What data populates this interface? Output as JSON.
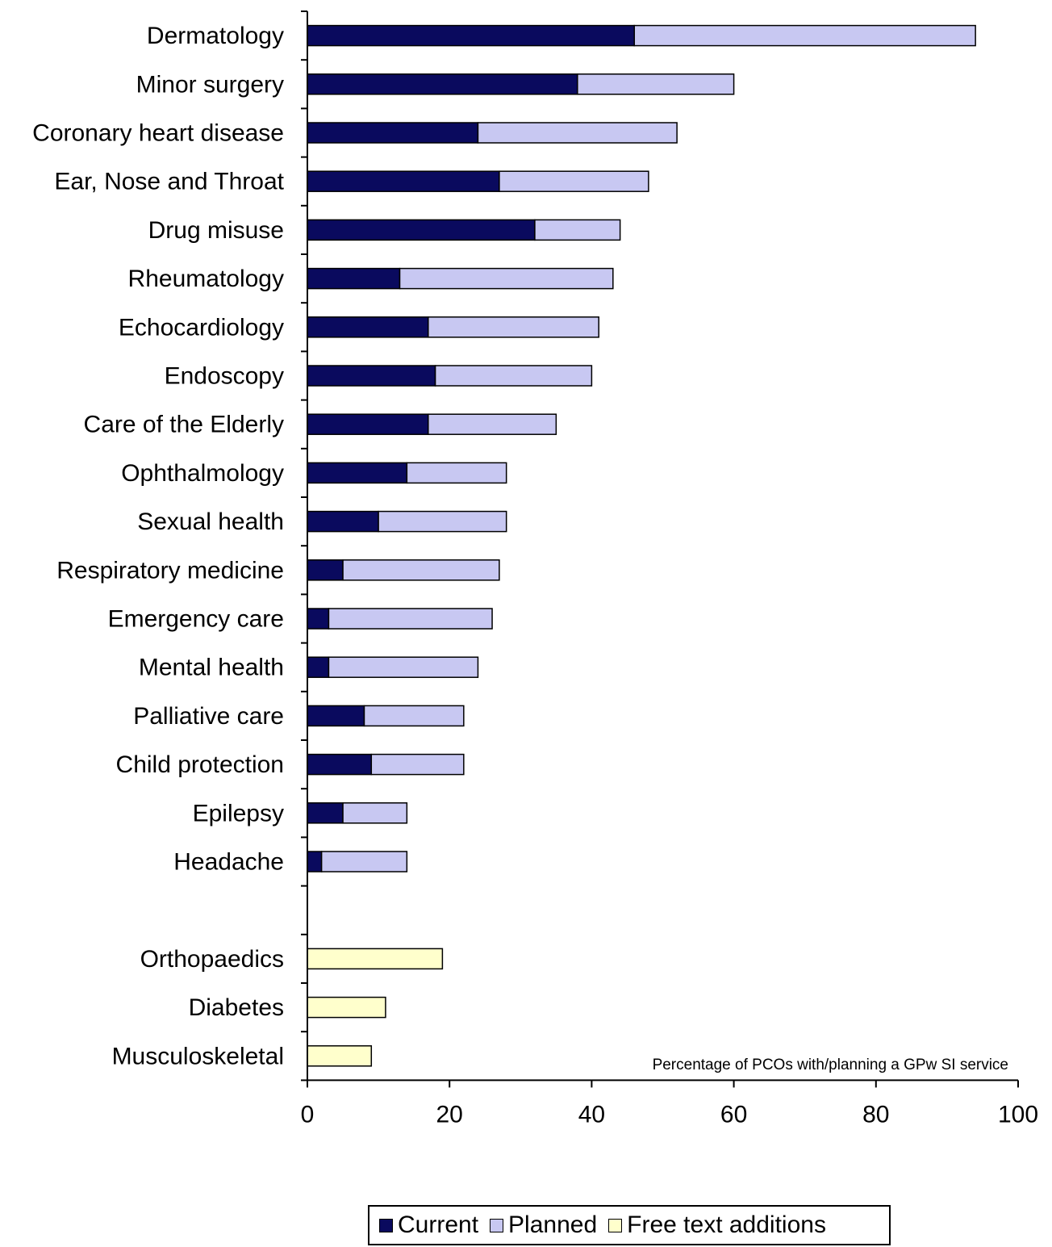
{
  "chart_data": {
    "type": "bar",
    "orientation": "horizontal",
    "stacked": true,
    "categories": [
      "Dermatology",
      "Minor surgery",
      "Coronary heart disease",
      "Ear, Nose and Throat",
      "Drug misuse",
      "Rheumatology",
      "Echocardiology",
      "Endoscopy",
      "Care of the Elderly",
      "Ophthalmology",
      "Sexual health",
      "Respiratory medicine",
      "Emergency care",
      "Mental health",
      "Palliative care",
      "Child protection",
      "Epilepsy",
      "Headache",
      "",
      "Orthopaedics",
      "Diabetes",
      "Musculoskeletal"
    ],
    "series": [
      {
        "name": "Current",
        "color": "#0a0a5e",
        "values": [
          46,
          38,
          24,
          27,
          32,
          13,
          17,
          18,
          17,
          14,
          10,
          5,
          3,
          3,
          8,
          9,
          5,
          2,
          0,
          0,
          0,
          0
        ]
      },
      {
        "name": "Planned",
        "color": "#c8c8f2",
        "values": [
          48,
          22,
          28,
          21,
          12,
          30,
          24,
          22,
          18,
          14,
          18,
          22,
          23,
          21,
          14,
          13,
          9,
          12,
          0,
          0,
          0,
          0
        ]
      },
      {
        "name": "Free text additions",
        "color": "#ffffcc",
        "values": [
          0,
          0,
          0,
          0,
          0,
          0,
          0,
          0,
          0,
          0,
          0,
          0,
          0,
          0,
          0,
          0,
          0,
          0,
          0,
          19,
          11,
          9
        ]
      }
    ],
    "xlim": [
      0,
      100
    ],
    "xticks": [
      0,
      20,
      40,
      60,
      80,
      100
    ],
    "xlabel": "Percentage of PCOs with/planning a GPw SI service",
    "ylabel": "",
    "title": "",
    "grid": false,
    "legend_position": "bottom"
  }
}
